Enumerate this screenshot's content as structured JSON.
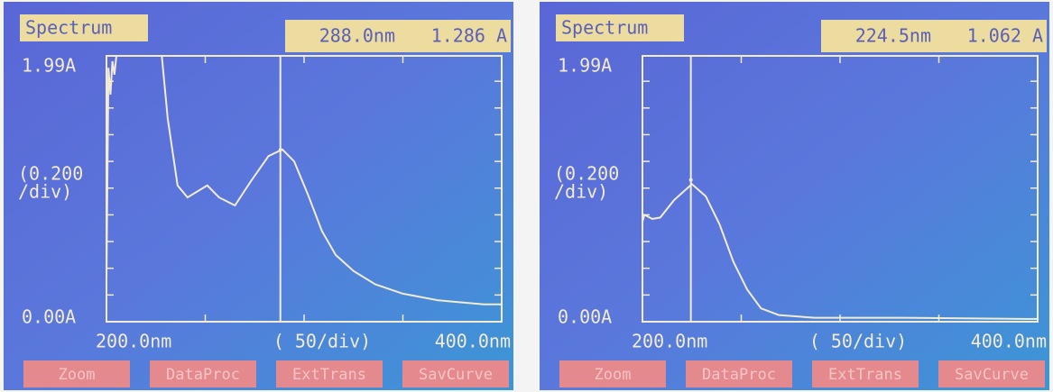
{
  "chart_data": [
    {
      "type": "line",
      "title": "Spectrum",
      "readout": [
        {
          "value": 288.0,
          "label": "288.0nm"
        },
        {
          "value": 1.286,
          "label": "1.286 A"
        }
      ],
      "x": [
        200,
        201,
        202,
        203,
        204,
        205,
        228,
        231,
        236,
        241,
        251,
        257,
        265,
        273,
        282,
        289,
        295,
        302,
        309,
        316,
        325,
        336,
        350,
        368,
        391,
        400
      ],
      "values": [
        0.3,
        1.9,
        1.7,
        1.95,
        1.85,
        1.99,
        1.99,
        1.52,
        1.02,
        0.93,
        1.02,
        0.93,
        0.87,
        1.05,
        1.24,
        1.29,
        1.2,
        0.95,
        0.68,
        0.5,
        0.38,
        0.28,
        0.21,
        0.16,
        0.13,
        0.13
      ],
      "color": "#f3ecd2",
      "xlim": [
        200,
        400
      ],
      "ylim": [
        0,
        1.99
      ],
      "xticks": [
        {
          "value": 200,
          "label": "200.0nm"
        },
        {
          "value": 400,
          "label": "400.0nm"
        }
      ],
      "yticks": [
        {
          "value": 0,
          "label": "0.00A"
        },
        {
          "value": 1.99,
          "label": "1.99A"
        }
      ],
      "minor_xticks": [
        250,
        300,
        350
      ],
      "minor_yticks": [
        0.2,
        0.4,
        0.6,
        0.8,
        1.0,
        1.2,
        1.4,
        1.6,
        1.8
      ],
      "y_scale": [
        "(0.200",
        "/div)"
      ],
      "x_scale": "(  50/div)",
      "buttons": [
        "Zoom",
        "DataProc",
        "ExtTrans",
        "SavCurve"
      ]
    },
    {
      "type": "line",
      "title": "Spectrum",
      "readout": [
        {
          "value": 224.5,
          "label": "224.5nm"
        },
        {
          "value": 1.062,
          "label": "1.062 A"
        }
      ],
      "x": [
        200,
        201,
        205,
        209,
        216,
        225,
        232,
        239,
        246,
        253,
        260,
        269,
        287,
        330,
        400
      ],
      "values": [
        0.75,
        0.8,
        0.77,
        0.78,
        0.91,
        1.03,
        0.94,
        0.73,
        0.45,
        0.24,
        0.1,
        0.05,
        0.03,
        0.03,
        0.02
      ],
      "color": "#f3ecd2",
      "xlim": [
        200,
        400
      ],
      "ylim": [
        0,
        1.99
      ],
      "xticks": [
        {
          "value": 200,
          "label": "200.0nm"
        },
        {
          "value": 400,
          "label": "400.0nm"
        }
      ],
      "yticks": [
        {
          "value": 0,
          "label": "0.00A"
        },
        {
          "value": 1.99,
          "label": "1.99A"
        }
      ],
      "minor_xticks": [
        250,
        300,
        350
      ],
      "minor_yticks": [
        0.2,
        0.4,
        0.6,
        0.8,
        1.0,
        1.2,
        1.4,
        1.6,
        1.8
      ],
      "y_scale": [
        "(0.200",
        "/div)"
      ],
      "x_scale": "(  50/div)",
      "buttons": [
        "Zoom",
        "DataProc",
        "ExtTrans",
        "SavCurve"
      ]
    }
  ]
}
